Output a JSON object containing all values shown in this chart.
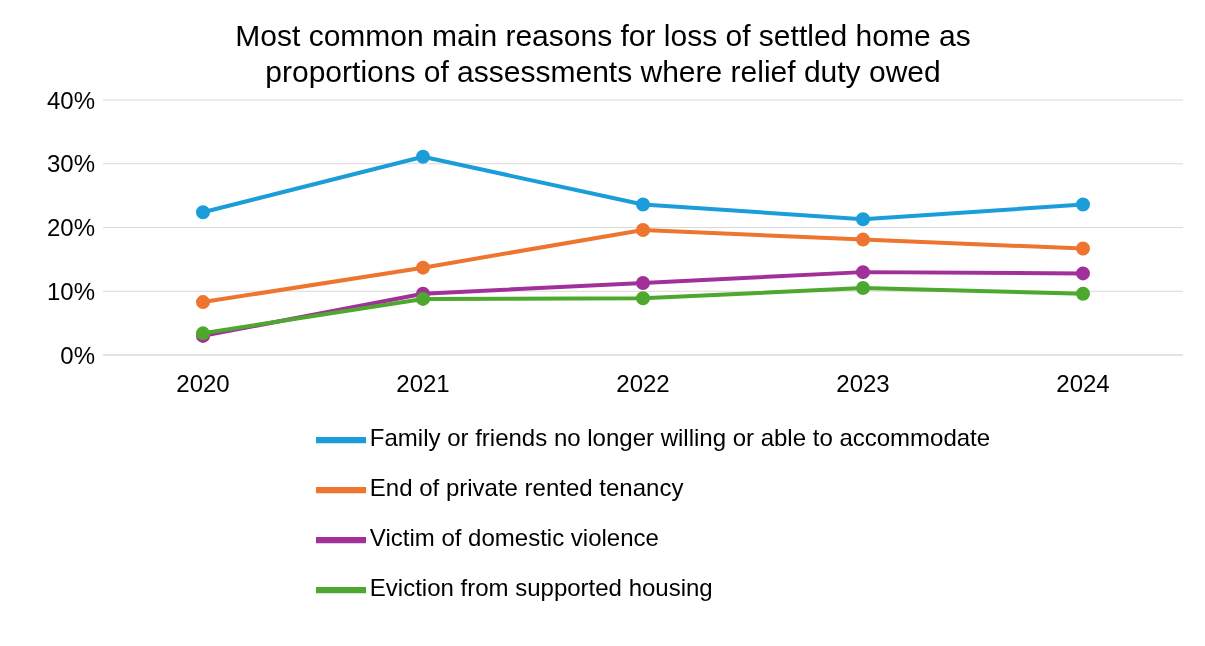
{
  "chart_data": {
    "type": "line",
    "title": "Most common main reasons for loss of settled home as proportions of assessments where relief duty owed",
    "categories": [
      "2020",
      "2021",
      "2022",
      "2023",
      "2024"
    ],
    "series": [
      {
        "name": "Family or friends no longer willing or able to accommodate",
        "color": "#1b9dd9",
        "values": [
          22.4,
          31.1,
          23.6,
          21.3,
          23.6
        ]
      },
      {
        "name": "End of private rented tenancy",
        "color": "#ee7530",
        "values": [
          8.3,
          13.7,
          19.6,
          18.1,
          16.7
        ]
      },
      {
        "name": "Victim of domestic violence",
        "color": "#a1309a",
        "values": [
          3.0,
          9.6,
          11.3,
          13.0,
          12.8
        ]
      },
      {
        "name": "Eviction from supported housing",
        "color": "#4ea72e",
        "values": [
          3.4,
          8.8,
          8.9,
          10.5,
          9.6
        ]
      }
    ],
    "ylim": [
      0,
      40
    ],
    "yticks": [
      {
        "value": 0,
        "label": "0%"
      },
      {
        "value": 10,
        "label": "10%"
      },
      {
        "value": 20,
        "label": "20%"
      },
      {
        "value": 30,
        "label": "30%"
      },
      {
        "value": 40,
        "label": "40%"
      }
    ],
    "grid": "y",
    "legend": "bottom",
    "marker": "circle",
    "line_style": "solid"
  }
}
